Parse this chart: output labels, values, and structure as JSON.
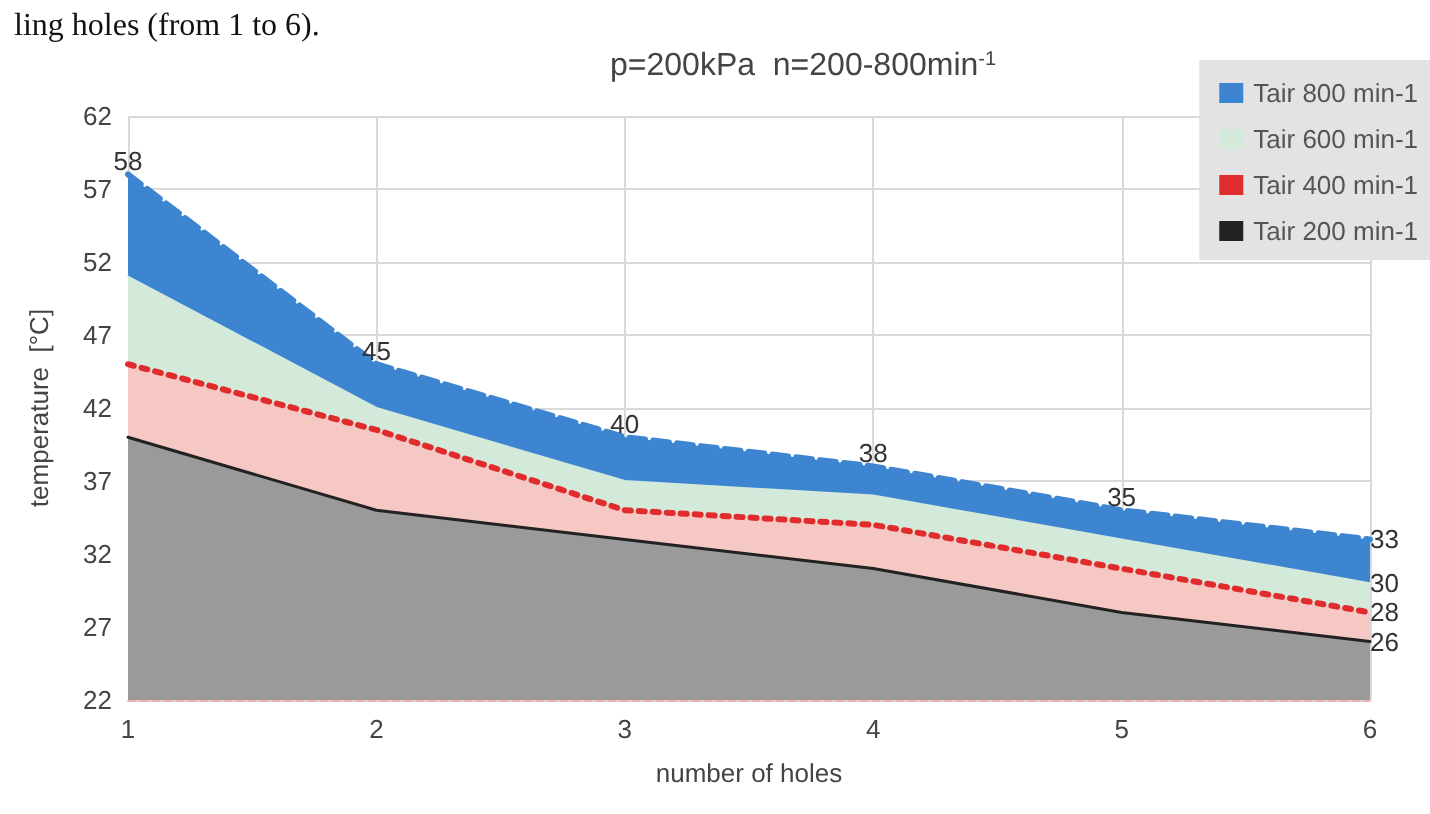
{
  "chart_data": {
    "type": "area",
    "title": "p=200kPa  n=200-800min$^{-1}$",
    "xlabel": "number of holes",
    "ylabel": "temperature  [°C]",
    "annotations": [
      "ling holes (from 1 to 6)."
    ],
    "x": [
      1,
      2,
      3,
      4,
      5,
      6
    ],
    "xlim": [
      1,
      6
    ],
    "xticks": [
      1,
      2,
      3,
      4,
      5,
      6
    ],
    "ylim": [
      22,
      62
    ],
    "yticks": [
      22,
      27,
      32,
      37,
      42,
      47,
      52,
      57,
      62
    ],
    "grid": true,
    "legend": "top right",
    "series": [
      {
        "name": "Tair 800 min-1",
        "color": "#3d85d0",
        "values": [
          58,
          45,
          40,
          38,
          35,
          33
        ],
        "line_style": "dashed",
        "value_labels": [
          "58",
          "45",
          "40",
          "38",
          "35",
          "33"
        ]
      },
      {
        "name": "Tair 600 min-1",
        "color": "#d3eadb",
        "values": [
          51,
          42,
          37,
          36,
          33,
          30
        ],
        "line_style": "solid",
        "value_labels": [
          null,
          null,
          null,
          null,
          null,
          "30"
        ]
      },
      {
        "name": "Tair 400 min-1",
        "color": "#e02c2c",
        "values": [
          45,
          40.5,
          35,
          34,
          31,
          28
        ],
        "line_style": "dotted",
        "value_labels": [
          null,
          null,
          null,
          null,
          null,
          "28"
        ]
      },
      {
        "name": "Tair 200 min-1",
        "color": "#222222",
        "values": [
          40,
          35,
          33,
          31,
          28,
          26
        ],
        "line_style": "solid",
        "value_labels": [
          null,
          null,
          null,
          null,
          null,
          "26"
        ]
      }
    ]
  }
}
